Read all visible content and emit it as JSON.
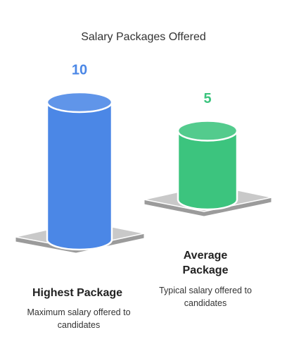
{
  "chart_data": {
    "type": "bar",
    "title": "Salary Packages Offered",
    "categories": [
      "Highest Package",
      "Average Package"
    ],
    "descriptions": [
      "Maximum salary offered to candidates",
      "Typical salary offered to candidates"
    ],
    "values": [
      10,
      5
    ],
    "colors": [
      "#4b87e6",
      "#3cc47e"
    ]
  }
}
